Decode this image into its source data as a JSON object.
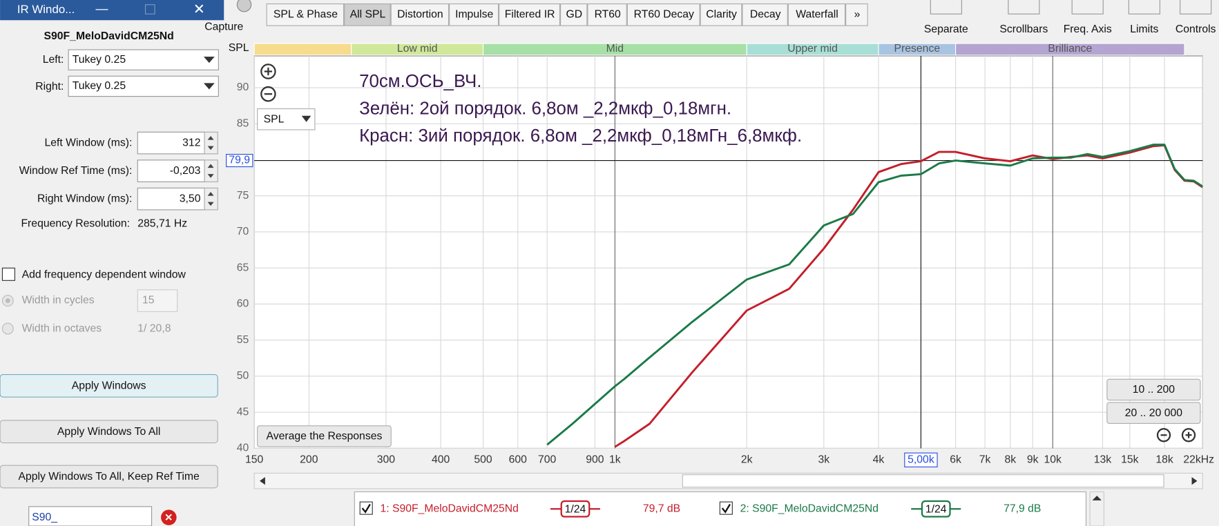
{
  "window": {
    "title": "IR Windo...",
    "measurement": "S90F_MeloDavidCM25Nd",
    "left_label": "Left:",
    "left_value": "Tukey 0.25",
    "right_label": "Right:",
    "right_value": "Tukey 0.25",
    "fields": [
      {
        "label": "Left Window (ms):",
        "value": "312"
      },
      {
        "label": "Window Ref Time (ms):",
        "value": "-0,203"
      },
      {
        "label": "Right Window (ms):",
        "value": "3,50"
      }
    ],
    "resolution_label": "Frequency Resolution:",
    "resolution_value": "285,71 Hz",
    "freq_dep": "Add frequency dependent window",
    "cycles_label": "Width in cycles",
    "cycles_value": "15",
    "octaves_label": "Width in octaves",
    "octaves_value": "1/ 20,8",
    "buttons": [
      "Apply Windows",
      "Apply Windows To All",
      "Apply Windows To All, Keep Ref Time"
    ],
    "search": "S90_"
  },
  "toolbar": {
    "capture": "Capture",
    "tabs": [
      "SPL & Phase",
      "All SPL",
      "Distortion",
      "Impulse",
      "Filtered IR",
      "GD",
      "RT60",
      "RT60 Decay",
      "Clarity",
      "Decay",
      "Waterfall",
      "»"
    ],
    "active_tab": 1,
    "tools": [
      "Separate",
      "Scrollbars",
      "Freq. Axis",
      "Limits",
      "Controls"
    ]
  },
  "chart_data": {
    "type": "line",
    "y_label": "SPL",
    "selector": "SPL",
    "log_x": true,
    "grid": true,
    "annotations": [
      "70см.ОСЬ_ВЧ.",
      "Зелён: 2ой порядок. 6,8ом _2,2мкф_0,18мгн.",
      "Красн: 3ий порядок. 6,8ом _2,2мкф_0,18мГн_6,8мкф."
    ],
    "bands": [
      {
        "label": null,
        "from": 150,
        "to": 250,
        "color": "#f7dc8e"
      },
      {
        "label": "Low mid",
        "from": 250,
        "to": 500,
        "color": "#cfe89a"
      },
      {
        "label": "Mid",
        "from": 500,
        "to": 2000,
        "color": "#a6e0a6"
      },
      {
        "label": "Upper mid",
        "from": 2000,
        "to": 4000,
        "color": "#a7dfd6"
      },
      {
        "label": "Presence",
        "from": 4000,
        "to": 6000,
        "color": "#a9c4e2"
      },
      {
        "label": "Brilliance",
        "from": 6000,
        "to": 20000,
        "color": "#b3a4d2"
      }
    ],
    "xlim": [
      150,
      22000
    ],
    "ylim": [
      40,
      94.4
    ],
    "xticks": [
      150,
      200,
      300,
      400,
      500,
      600,
      700,
      900,
      {
        "value": 1000,
        "label": "1k"
      },
      {
        "value": 2000,
        "label": "2k"
      },
      {
        "value": 3000,
        "label": "3k"
      },
      {
        "value": 4000,
        "label": "4k"
      },
      {
        "value": 6000,
        "label": "6k"
      },
      {
        "value": 7000,
        "label": "7k"
      },
      {
        "value": 8000,
        "label": "8k"
      },
      {
        "value": 9000,
        "label": "9k"
      },
      {
        "value": 10000,
        "label": "10k"
      },
      {
        "value": 13000,
        "label": "13k"
      },
      {
        "value": 15000,
        "label": "15k"
      },
      {
        "value": 18000,
        "label": "18k"
      },
      {
        "value": 22000,
        "label": "22kHz"
      }
    ],
    "yticks": [
      40,
      45,
      50,
      55,
      60,
      65,
      70,
      75,
      85,
      90
    ],
    "cursor": {
      "x": {
        "value": 5000,
        "label": "5,00k"
      },
      "y": {
        "value": 79.9,
        "label": "79,9"
      }
    },
    "x": [
      700,
      800,
      1000,
      1050,
      1200,
      1500,
      2000,
      2500,
      3000,
      3500,
      4000,
      4500,
      5000,
      5500,
      6000,
      7000,
      8000,
      9000,
      10000,
      11000,
      12000,
      13000,
      15000,
      17000,
      18000,
      19000,
      20000,
      21000,
      22000
    ],
    "series": [
      {
        "name": "1: S90F_MeloDavidCM25Nd",
        "color": "#c41e2a",
        "smoothing": "1/24",
        "level": "79,7 dB",
        "values": [
          null,
          null,
          40.2,
          41,
          43.4,
          50.5,
          59.1,
          62.1,
          67.7,
          73.1,
          78.3,
          79.4,
          79.8,
          81.1,
          81.1,
          80.2,
          79.8,
          80.6,
          80.1,
          80.4,
          80.6,
          80.2,
          81.0,
          81.9,
          82.0,
          78.6,
          77.1,
          77.0,
          76.2
        ]
      },
      {
        "name": "2: S90F_MeloDavidCM25Nd",
        "color": "#1b7a48",
        "smoothing": "1/24",
        "level": "77,9 dB",
        "values": [
          40.5,
          43.4,
          48.6,
          49.6,
          52.6,
          57.5,
          63.4,
          65.5,
          70.9,
          72.5,
          76.9,
          77.8,
          78.0,
          79.5,
          79.9,
          79.5,
          79.2,
          80.2,
          80.3,
          80.3,
          80.8,
          80.4,
          81.2,
          82.1,
          82.1,
          78.7,
          77.2,
          77.1,
          76.3
        ]
      }
    ],
    "average_button": "Average the Responses",
    "range_buttons": [
      "10 .. 200",
      "20 .. 20 000"
    ]
  }
}
